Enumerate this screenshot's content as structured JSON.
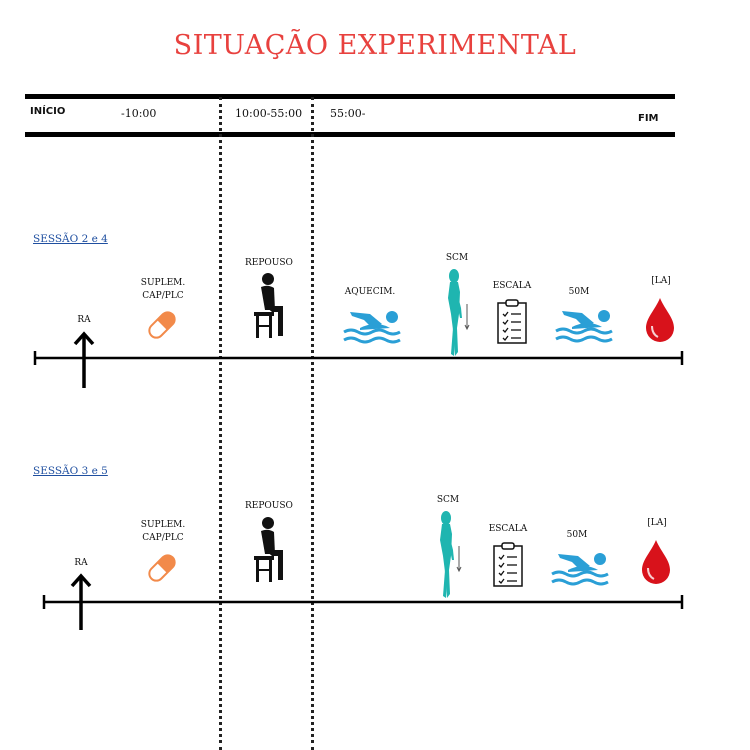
{
  "title": "SITUAÇÃO EXPERIMENTAL",
  "header": {
    "start": "INÍCIO",
    "t1": "-10:00",
    "t2": "10:00-55:00",
    "t3": "55:00-",
    "end": "FIM"
  },
  "sessions": [
    {
      "label": "SESSÃO 2 e 4",
      "ra": "RA",
      "suplem_line1": "SUPLEM.",
      "suplem_line2": "CAP/PLC",
      "repouso": "REPOUSO",
      "aquecim": "AQUECIM.",
      "scm": "SCM",
      "escala": "ESCALA",
      "m50": "50M",
      "la": "[LA]"
    },
    {
      "label": "SESSÃO 3 e 5",
      "ra": "RA",
      "suplem_line1": "SUPLEM.",
      "suplem_line2": "CAP/PLC",
      "repouso": "REPOUSO",
      "scm": "SCM",
      "escala": "ESCALA",
      "m50": "50M",
      "la": "[LA]"
    }
  ],
  "colors": {
    "title": "#e8413e",
    "capsule": "#f28a4a",
    "swimmer": "#2a9fd6",
    "body": "#1fb5b0",
    "blood": "#d8121b",
    "session_link": "#1f4fa0"
  },
  "icons": [
    "arrow-up-icon",
    "capsule-icon",
    "seated-person-icon",
    "swimmer-icon",
    "standing-body-icon",
    "clipboard-icon",
    "blood-drop-icon"
  ]
}
